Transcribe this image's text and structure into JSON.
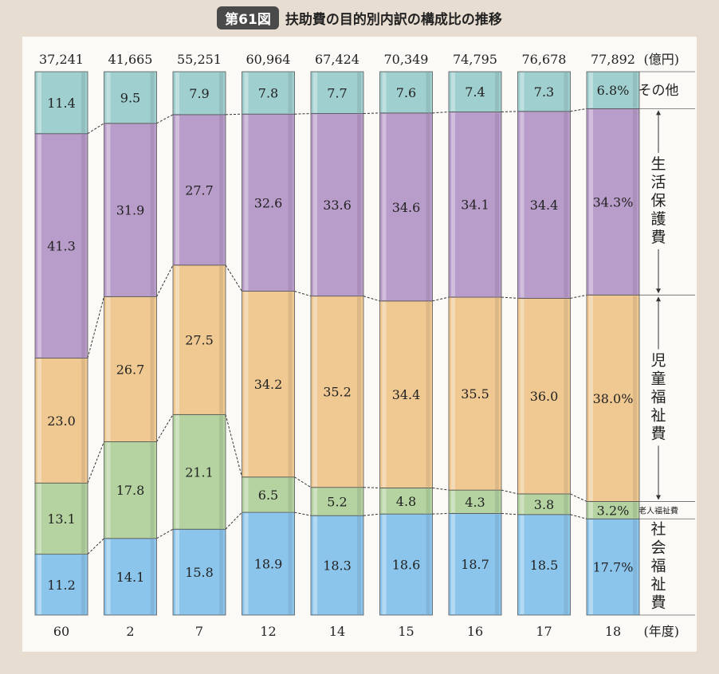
{
  "title": {
    "badge": "第61図",
    "text": "扶助費の目的別内訳の構成比の推移"
  },
  "chart_data": {
    "type": "bar",
    "stacked": "percent",
    "categories": [
      "60",
      "2",
      "7",
      "12",
      "14",
      "15",
      "16",
      "17",
      "18"
    ],
    "totals": [
      "37,241",
      "41,665",
      "55,251",
      "60,964",
      "67,424",
      "70,349",
      "74,795",
      "76,678",
      "77,892"
    ],
    "totals_unit": "(億円)",
    "x_unit": "(年度)",
    "series": [
      {
        "name": "社会福祉費",
        "color": "#8cc5ec",
        "values": [
          11.2,
          14.1,
          15.8,
          18.9,
          18.3,
          18.6,
          18.7,
          18.5,
          17.7
        ],
        "labels": [
          "11.2",
          "14.1",
          "15.8",
          "18.9",
          "18.3",
          "18.6",
          "18.7",
          "18.5",
          "17.7%"
        ]
      },
      {
        "name": "老人福祉費",
        "color": "#b4d3a1",
        "values": [
          13.1,
          17.8,
          21.1,
          6.5,
          5.2,
          4.8,
          4.3,
          3.8,
          3.2
        ],
        "labels": [
          "13.1",
          "17.8",
          "21.1",
          "6.5",
          "5.2",
          "4.8",
          "4.3",
          "3.8",
          "3.2%"
        ]
      },
      {
        "name": "児童福祉費",
        "color": "#efc892",
        "values": [
          23.0,
          26.7,
          27.5,
          34.2,
          35.2,
          34.4,
          35.5,
          36.0,
          38.0
        ],
        "labels": [
          "23.0",
          "26.7",
          "27.5",
          "34.2",
          "35.2",
          "34.4",
          "35.5",
          "36.0",
          "38.0%"
        ]
      },
      {
        "name": "生活保護費",
        "color": "#b89cc9",
        "values": [
          41.3,
          31.9,
          27.7,
          32.6,
          33.6,
          34.6,
          34.1,
          34.4,
          34.3
        ],
        "labels": [
          "41.3",
          "31.9",
          "27.7",
          "32.6",
          "33.6",
          "34.6",
          "34.1",
          "34.4",
          "34.3%"
        ]
      },
      {
        "name": "その他",
        "color": "#9fcfcf",
        "values": [
          11.4,
          9.5,
          7.9,
          7.8,
          7.7,
          7.6,
          7.4,
          7.3,
          6.8
        ],
        "labels": [
          "11.4",
          "9.5",
          "7.9",
          "7.8",
          "7.7",
          "7.6",
          "7.4",
          "7.3",
          "6.8%"
        ]
      }
    ]
  }
}
